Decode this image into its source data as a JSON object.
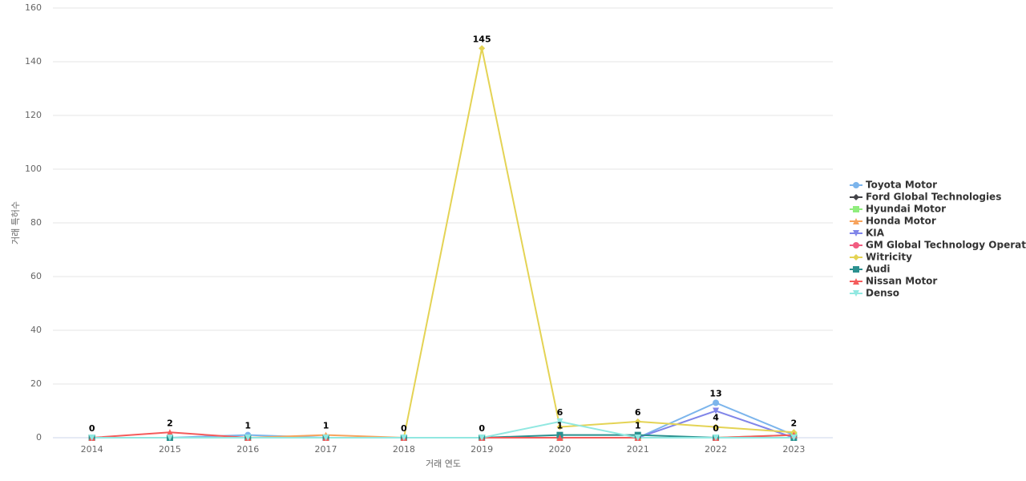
{
  "chart_data": {
    "type": "line",
    "x_label": "거래 연도",
    "y_label": "거래 특허수",
    "categories": [
      "2014",
      "2015",
      "2016",
      "2017",
      "2018",
      "2019",
      "2020",
      "2021",
      "2022",
      "2023"
    ],
    "ylim": [
      0,
      160
    ],
    "yticks": [
      0,
      20,
      40,
      60,
      80,
      100,
      120,
      140,
      160
    ],
    "grid": true,
    "data_labels": true,
    "legend": "right",
    "series": [
      {
        "name": "Toyota Motor",
        "color": "#7cb5ec",
        "marker": "circle",
        "values": [
          0,
          0,
          1,
          0,
          0,
          0,
          0,
          0,
          13,
          1
        ]
      },
      {
        "name": "Ford Global Technologies",
        "color": "#434348",
        "marker": "diamond",
        "values": [
          0,
          0,
          0,
          0,
          0,
          0,
          0,
          0,
          0,
          0
        ]
      },
      {
        "name": "Hyundai Motor",
        "color": "#90ed7d",
        "marker": "square",
        "values": [
          0,
          0,
          0,
          0,
          0,
          0,
          0,
          0,
          0,
          1
        ]
      },
      {
        "name": "Honda Motor",
        "color": "#f7a35c",
        "marker": "triangle",
        "values": [
          0,
          0,
          0,
          1,
          0,
          0,
          0,
          0,
          0,
          0
        ]
      },
      {
        "name": "KIA",
        "color": "#8085e9",
        "marker": "triangle-down",
        "values": [
          0,
          0,
          0,
          0,
          0,
          0,
          0,
          0,
          10,
          0
        ]
      },
      {
        "name": "GM Global Technology Operat...",
        "color": "#f15c80",
        "marker": "circle",
        "values": [
          0,
          0,
          0,
          0,
          0,
          0,
          0,
          0,
          0,
          0
        ]
      },
      {
        "name": "Witricity",
        "color": "#e4d354",
        "marker": "diamond",
        "values": [
          0,
          0,
          0,
          0,
          0,
          145,
          4,
          6,
          4,
          2
        ]
      },
      {
        "name": "Audi",
        "color": "#2b908f",
        "marker": "square",
        "values": [
          0,
          0,
          0,
          0,
          0,
          0,
          1,
          1,
          0,
          0
        ]
      },
      {
        "name": "Nissan Motor",
        "color": "#f45b5b",
        "marker": "triangle",
        "values": [
          0,
          2,
          0,
          0,
          0,
          0,
          0,
          0,
          0,
          1
        ]
      },
      {
        "name": "Denso",
        "color": "#91e8e1",
        "marker": "triangle-down",
        "values": [
          0,
          0,
          0,
          0,
          0,
          0,
          6,
          0,
          0,
          0
        ]
      }
    ]
  }
}
